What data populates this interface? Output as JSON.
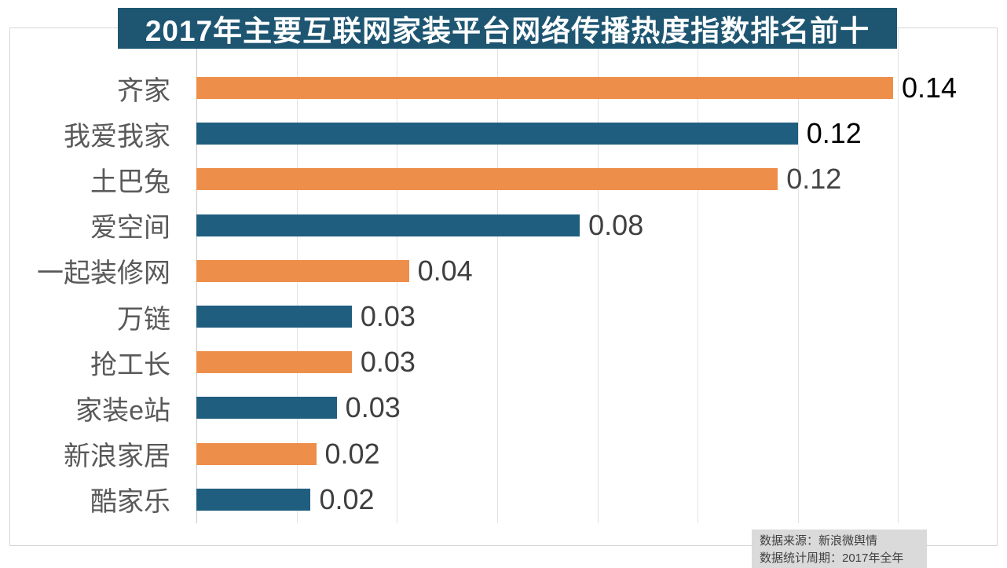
{
  "title": {
    "text": "2017年主要互联网家装平台网络传播热度指数排名前十",
    "bg_color": "#1E5672",
    "text_color": "#FFFFFF"
  },
  "chart_data": {
    "type": "bar",
    "orientation": "horizontal",
    "title": "2017年主要互联网家装平台网络传播热度指数排名前十",
    "categories": [
      "齐家",
      "我爱我家",
      "土巴兔",
      "爱空间",
      "一起装修网",
      "万链",
      "抢工长",
      "家装e站",
      "新浪家居",
      "酷家乐"
    ],
    "values": [
      0.14,
      0.12,
      0.12,
      0.08,
      0.04,
      0.03,
      0.03,
      0.03,
      0.02,
      0.02
    ],
    "value_labels": [
      "0.14",
      "0.12",
      "0.12",
      "0.08",
      "0.04",
      "0.03",
      "0.03",
      "0.03",
      "0.02",
      "0.02"
    ],
    "bar_lengths_precise": [
      0.139,
      0.12,
      0.116,
      0.0765,
      0.0424,
      0.031,
      0.031,
      0.028,
      0.0239,
      0.0228
    ],
    "bar_colors": [
      "#EE8E4B",
      "#205E7F",
      "#EE8E4B",
      "#205E7F",
      "#EE8E4B",
      "#205E7F",
      "#EE8E4B",
      "#205E7F",
      "#EE8E4B",
      "#205E7F"
    ],
    "value_label_colors": [
      "#000000",
      "#000000",
      "#454545",
      "#3F3F3F",
      "#3F3F3F",
      "#3F3F3F",
      "#3F3F3F",
      "#3F3F3F",
      "#3F3F3F",
      "#3F3F3F"
    ],
    "xlabel": "",
    "ylabel": "",
    "axis": {
      "min": 0,
      "max": 0.16,
      "gridline_interval": 0.02,
      "gridlines_visible": true,
      "tick_labels_visible": false
    },
    "legend_position": "none",
    "category_label_color": "#595959"
  },
  "footer": {
    "line1": "数据来源：新浪微舆情",
    "line2": "数据统计周期：2017年全年",
    "bg_color": "#DADADA",
    "text_color": "#404040"
  },
  "colors": {
    "orange_bar": "#EE8E4B",
    "blue_bar": "#205E7F",
    "gridline": "#E2E2E2",
    "axis_line": "#C9C9C9",
    "chart_border": "#D6D6D6"
  }
}
